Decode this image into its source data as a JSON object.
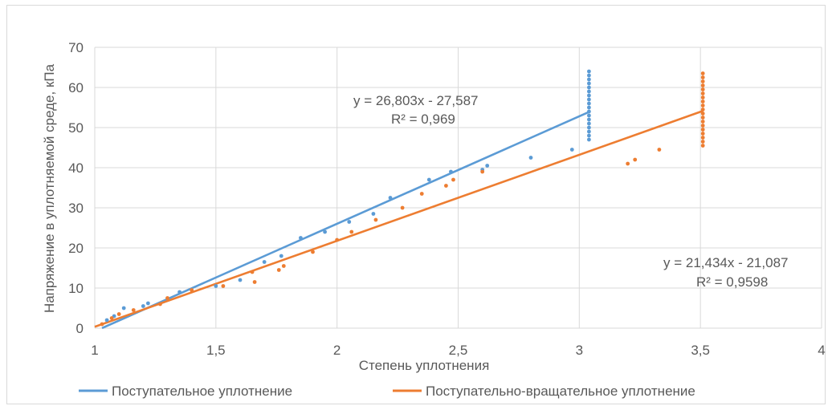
{
  "chart_data": {
    "type": "scatter",
    "title": "",
    "xlabel": "Степень уплотнения",
    "ylabel": "Напряжение в уплотняемой среде, кПа",
    "xlim": [
      1,
      4
    ],
    "ylim": [
      0,
      70
    ],
    "x_ticks": [
      1,
      1.5,
      2,
      2.5,
      3,
      3.5,
      4
    ],
    "x_tick_labels": [
      "1",
      "1,5",
      "2",
      "2,5",
      "3",
      "3,5",
      "4"
    ],
    "y_ticks": [
      0,
      10,
      20,
      30,
      40,
      50,
      60,
      70
    ],
    "y_tick_labels": [
      "0",
      "10",
      "20",
      "30",
      "40",
      "50",
      "60",
      "70"
    ],
    "grid": true,
    "legend_position": "bottom",
    "series": [
      {
        "name": "Поступательное уплотнение",
        "color": "#5b9bd5",
        "trendline": {
          "slope": 26.803,
          "intercept": -27.587,
          "x_range": [
            1.03,
            3.04
          ],
          "equation": "y = 26,803x - 27,587",
          "r2": "R² = 0,969"
        },
        "points": [
          [
            1.05,
            2.0
          ],
          [
            1.08,
            3.0
          ],
          [
            1.12,
            5.0
          ],
          [
            1.2,
            5.5
          ],
          [
            1.22,
            6.2
          ],
          [
            1.35,
            9.0
          ],
          [
            1.5,
            10.5
          ],
          [
            1.6,
            12.0
          ],
          [
            1.7,
            16.5
          ],
          [
            1.77,
            18.0
          ],
          [
            1.85,
            22.5
          ],
          [
            1.95,
            24.0
          ],
          [
            2.05,
            26.5
          ],
          [
            2.15,
            28.5
          ],
          [
            2.22,
            32.5
          ],
          [
            2.38,
            37.0
          ],
          [
            2.47,
            39.0
          ],
          [
            2.6,
            39.5
          ],
          [
            2.62,
            40.5
          ],
          [
            2.8,
            42.5
          ],
          [
            2.97,
            44.5
          ],
          [
            3.04,
            47
          ],
          [
            3.04,
            48
          ],
          [
            3.04,
            49
          ],
          [
            3.04,
            50
          ],
          [
            3.04,
            51
          ],
          [
            3.04,
            52
          ],
          [
            3.04,
            53
          ],
          [
            3.04,
            54
          ],
          [
            3.04,
            55
          ],
          [
            3.04,
            56
          ],
          [
            3.04,
            57
          ],
          [
            3.04,
            58
          ],
          [
            3.04,
            59
          ],
          [
            3.04,
            60
          ],
          [
            3.04,
            61
          ],
          [
            3.04,
            62
          ],
          [
            3.04,
            63
          ],
          [
            3.04,
            64
          ]
        ]
      },
      {
        "name": "Поступательно-вращательное уплотнение",
        "color": "#ed7d31",
        "trendline": {
          "slope": 21.434,
          "intercept": -21.087,
          "x_range": [
            1.0,
            3.51
          ],
          "equation": "y = 21,434x - 21,087",
          "r2": "R² = 0,9598"
        },
        "points": [
          [
            1.03,
            1.0
          ],
          [
            1.07,
            2.5
          ],
          [
            1.1,
            3.5
          ],
          [
            1.16,
            4.5
          ],
          [
            1.27,
            6.0
          ],
          [
            1.3,
            7.5
          ],
          [
            1.4,
            9.5
          ],
          [
            1.53,
            10.5
          ],
          [
            1.65,
            14.0
          ],
          [
            1.66,
            11.5
          ],
          [
            1.76,
            14.5
          ],
          [
            1.78,
            15.5
          ],
          [
            1.9,
            19.0
          ],
          [
            2.0,
            22.0
          ],
          [
            2.06,
            24.0
          ],
          [
            2.16,
            27.0
          ],
          [
            2.27,
            30.0
          ],
          [
            2.35,
            33.5
          ],
          [
            2.45,
            35.5
          ],
          [
            2.48,
            37.0
          ],
          [
            2.6,
            39.0
          ],
          [
            3.2,
            41.0
          ],
          [
            3.23,
            42.0
          ],
          [
            3.33,
            44.5
          ],
          [
            3.51,
            45.5
          ],
          [
            3.51,
            46.5
          ],
          [
            3.51,
            47.5
          ],
          [
            3.51,
            48.5
          ],
          [
            3.51,
            49.5
          ],
          [
            3.51,
            50.5
          ],
          [
            3.51,
            51.5
          ],
          [
            3.51,
            52.5
          ],
          [
            3.51,
            53.5
          ],
          [
            3.51,
            54.5
          ],
          [
            3.51,
            55.5
          ],
          [
            3.51,
            56.5
          ],
          [
            3.51,
            57.5
          ],
          [
            3.51,
            58.5
          ],
          [
            3.51,
            59.5
          ],
          [
            3.51,
            60.5
          ],
          [
            3.51,
            61.5
          ],
          [
            3.51,
            62.5
          ],
          [
            3.51,
            63.5
          ]
        ]
      }
    ]
  }
}
